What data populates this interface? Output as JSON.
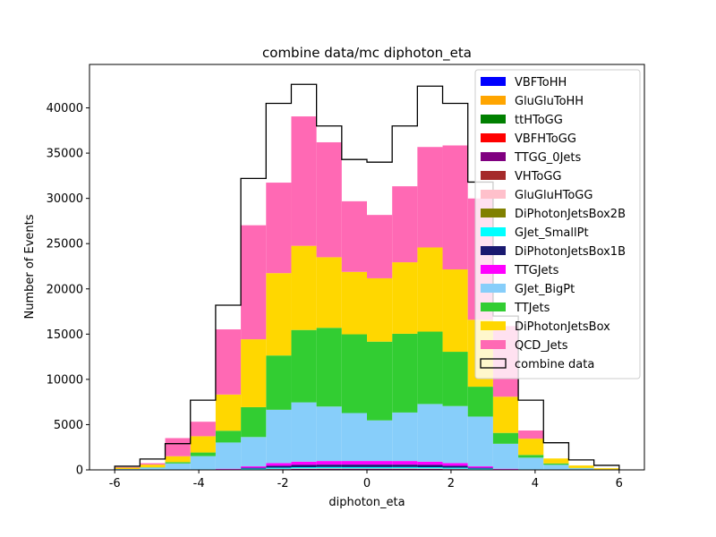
{
  "chart_data": {
    "type": "bar",
    "title": "combine data/mc diphoton_eta",
    "xlabel": "diphoton_eta",
    "ylabel": "Number of Events",
    "xlim": [
      -6.6,
      6.6
    ],
    "ylim": [
      0,
      44800
    ],
    "x_ticks": [
      "-6",
      "-4",
      "-2",
      "0",
      "2",
      "4",
      "6"
    ],
    "x_tick_values": [
      -6,
      -4,
      -2,
      0,
      2,
      4,
      6
    ],
    "y_ticks": [
      "0",
      "5000",
      "10000",
      "15000",
      "20000",
      "25000",
      "30000",
      "35000",
      "40000"
    ],
    "y_tick_values": [
      0,
      5000,
      10000,
      15000,
      20000,
      25000,
      30000,
      35000,
      40000
    ],
    "bin_edges": [
      -6.0,
      -5.4,
      -4.8,
      -4.2,
      -3.6,
      -3.0,
      -2.4,
      -1.8,
      -1.2,
      -0.6,
      0.0,
      0.6,
      1.2,
      1.8,
      2.4,
      3.0,
      3.6,
      4.2,
      4.8,
      5.4,
      6.0
    ],
    "stacked": true,
    "series": [
      {
        "name": "VBFToHH",
        "color": "#0000ff",
        "values": [
          0,
          0,
          0,
          0,
          0,
          0,
          0,
          0,
          0,
          0,
          0,
          0,
          0,
          0,
          0,
          0,
          0,
          0,
          0,
          0
        ]
      },
      {
        "name": "GluGluToHH",
        "color": "#ffa500",
        "values": [
          0,
          0,
          0,
          0,
          0,
          0,
          0,
          0,
          0,
          0,
          0,
          0,
          0,
          0,
          0,
          0,
          0,
          0,
          0,
          0
        ]
      },
      {
        "name": "ttHToGG",
        "color": "#008000",
        "values": [
          0,
          0,
          0,
          0,
          0,
          5,
          10,
          12,
          12,
          10,
          10,
          12,
          12,
          10,
          5,
          0,
          0,
          0,
          0,
          0
        ]
      },
      {
        "name": "VBFHToGG",
        "color": "#ff0000",
        "values": [
          0,
          0,
          0,
          0,
          0,
          5,
          10,
          12,
          12,
          10,
          10,
          12,
          12,
          10,
          5,
          0,
          0,
          0,
          0,
          0
        ]
      },
      {
        "name": "TTGG_0Jets",
        "color": "#800080",
        "values": [
          0,
          0,
          0,
          0,
          0,
          20,
          60,
          80,
          90,
          100,
          100,
          90,
          80,
          60,
          20,
          0,
          0,
          0,
          0,
          0
        ]
      },
      {
        "name": "VHToGG",
        "color": "#a52a2a",
        "values": [
          0,
          0,
          0,
          0,
          0,
          5,
          10,
          12,
          12,
          10,
          10,
          12,
          12,
          10,
          5,
          0,
          0,
          0,
          0,
          0
        ]
      },
      {
        "name": "GluGluHToGG",
        "color": "#ffc0cb",
        "values": [
          0,
          0,
          0,
          0,
          5,
          20,
          30,
          40,
          40,
          30,
          30,
          40,
          40,
          30,
          20,
          5,
          0,
          0,
          0,
          0
        ]
      },
      {
        "name": "DiPhotonJetsBox2B",
        "color": "#808000",
        "values": [
          0,
          0,
          0,
          0,
          0,
          5,
          10,
          12,
          12,
          10,
          10,
          12,
          12,
          10,
          5,
          0,
          0,
          0,
          0,
          0
        ]
      },
      {
        "name": "GJet_SmallPt",
        "color": "#00ffff",
        "values": [
          0,
          5,
          10,
          20,
          40,
          80,
          120,
          130,
          140,
          140,
          140,
          140,
          130,
          120,
          80,
          40,
          20,
          10,
          5,
          0
        ]
      },
      {
        "name": "DiPhotonJetsBox1B",
        "color": "#191970",
        "values": [
          0,
          0,
          0,
          0,
          20,
          100,
          200,
          250,
          260,
          270,
          270,
          260,
          250,
          200,
          100,
          20,
          0,
          0,
          0,
          0
        ]
      },
      {
        "name": "TTGJets",
        "color": "#ff00ff",
        "values": [
          0,
          0,
          0,
          0,
          60,
          150,
          300,
          360,
          400,
          400,
          400,
          400,
          360,
          300,
          150,
          60,
          0,
          0,
          0,
          0
        ]
      },
      {
        "name": "GJet_BigPt",
        "color": "#87cefa",
        "values": [
          100,
          250,
          700,
          1500,
          2900,
          3240,
          5890,
          6550,
          6020,
          5300,
          4490,
          5360,
          6370,
          6300,
          5500,
          2760,
          1330,
          550,
          180,
          60
        ]
      },
      {
        "name": "TTJets",
        "color": "#32cd32",
        "values": [
          0,
          30,
          150,
          400,
          1300,
          3300,
          6000,
          8000,
          8700,
          8700,
          8700,
          8700,
          8000,
          6000,
          3300,
          1200,
          300,
          150,
          30,
          0
        ]
      },
      {
        "name": "DiPhotonJetsBox",
        "color": "#ffd700",
        "values": [
          150,
          300,
          650,
          1800,
          4000,
          7500,
          9100,
          9300,
          7800,
          6900,
          7000,
          7900,
          9300,
          9100,
          7400,
          4000,
          1800,
          550,
          270,
          120
        ]
      },
      {
        "name": "QCD_Jets",
        "color": "#ff69b4",
        "values": [
          60,
          150,
          2000,
          1600,
          7200,
          12600,
          10000,
          14300,
          12700,
          7800,
          7000,
          8400,
          11100,
          13700,
          13400,
          7800,
          900,
          0,
          0,
          0
        ]
      }
    ],
    "data_series": {
      "name": "combine data",
      "color": "#000000",
      "values": [
        400,
        1200,
        2900,
        7700,
        18200,
        32200,
        40500,
        42600,
        38000,
        34300,
        34000,
        38000,
        42400,
        40500,
        31800,
        17000,
        7700,
        3000,
        1100,
        500
      ]
    },
    "legend_position": "top-right",
    "grid": false
  }
}
